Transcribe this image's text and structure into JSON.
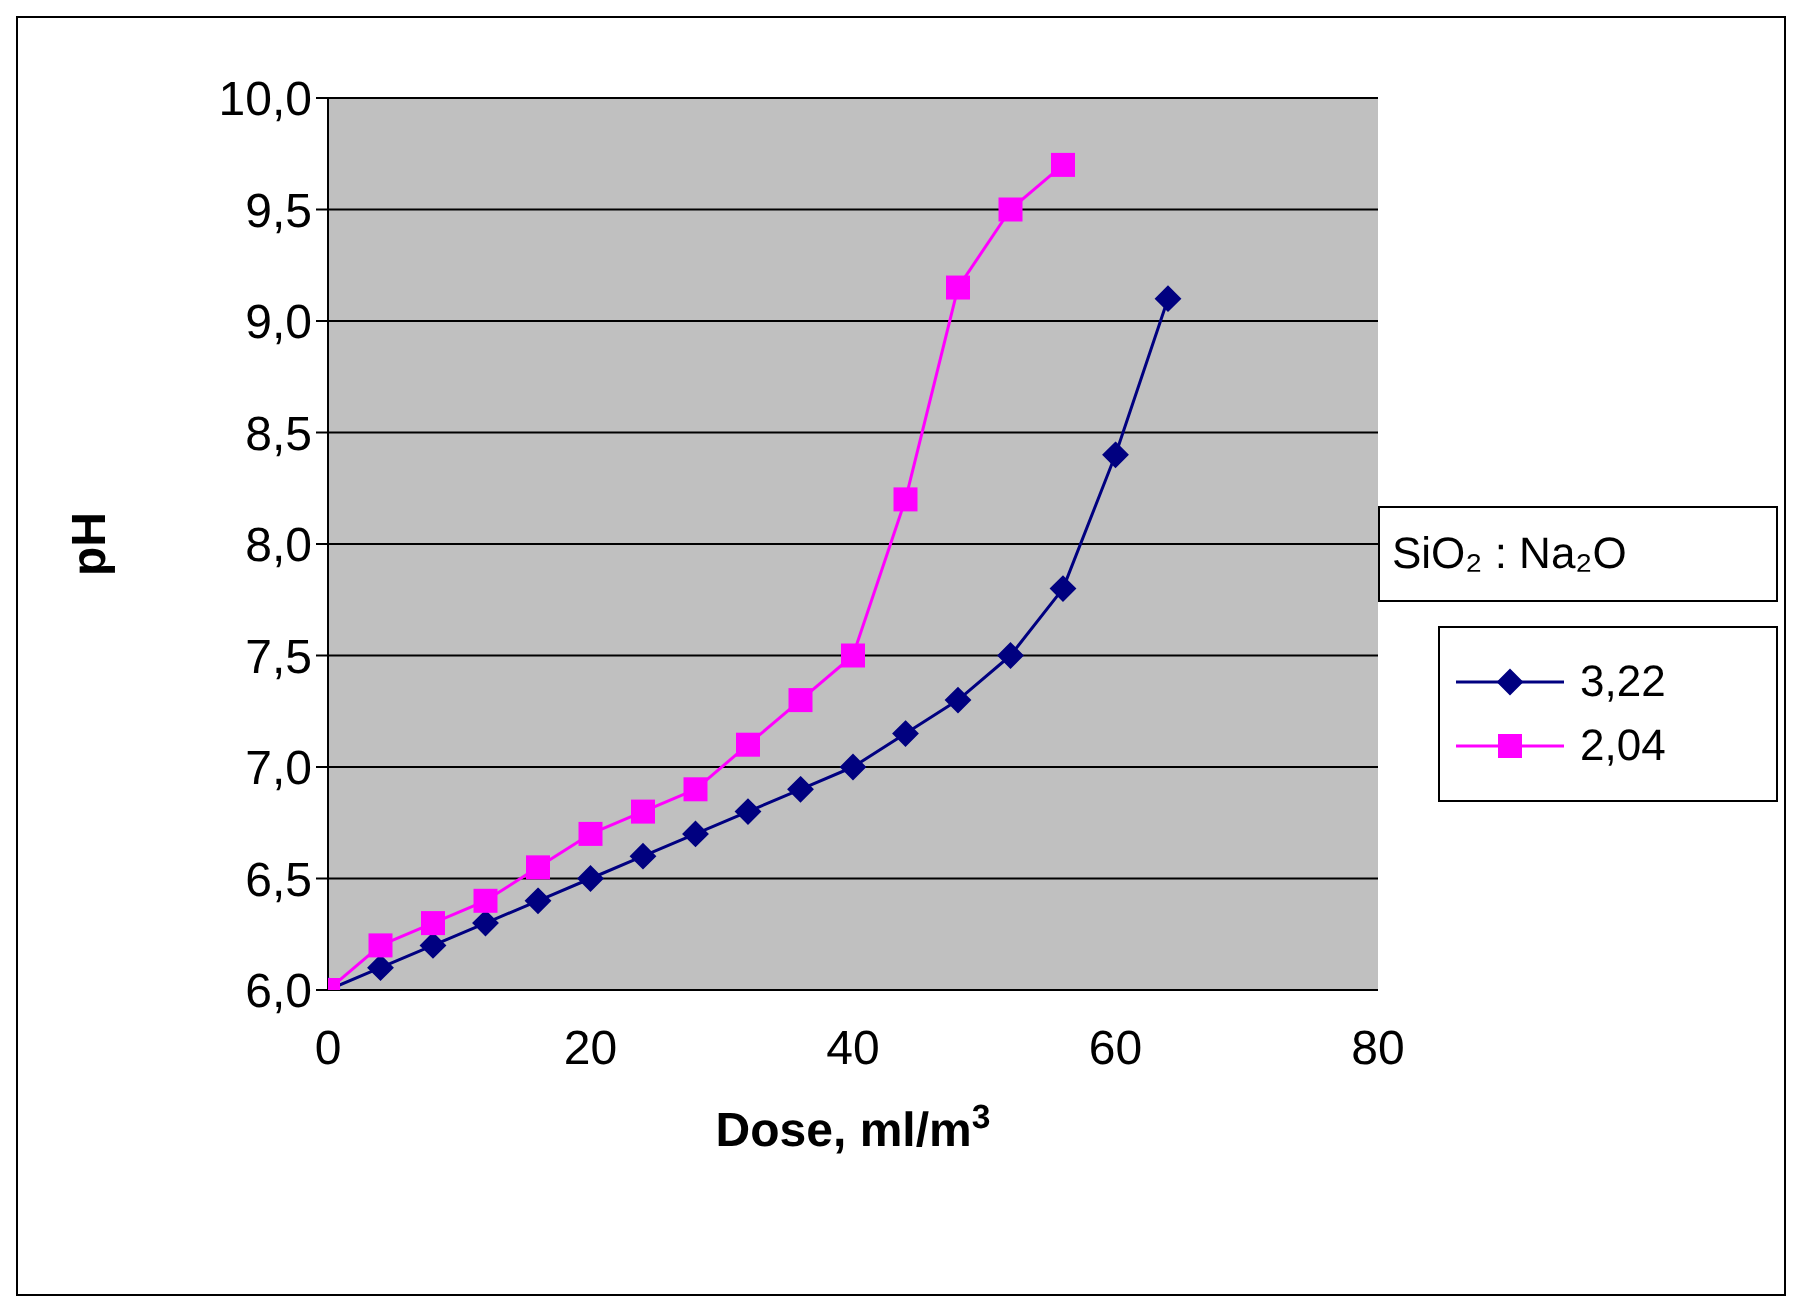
{
  "chart_data": {
    "type": "line",
    "xlabel": "Dose, ml/m$^{3}$",
    "ylabel": "pH",
    "legend_title": "SiO₂ : Na₂O",
    "legend": "right",
    "grid": "y",
    "xlim": [
      0,
      80
    ],
    "xticks": [
      0,
      20,
      40,
      60,
      80
    ],
    "ylim": [
      6,
      10
    ],
    "yticks": [
      {
        "value": 6,
        "label": "6,0"
      },
      {
        "value": 6.5,
        "label": "6,5"
      },
      {
        "value": 7,
        "label": "7,0"
      },
      {
        "value": 7.5,
        "label": "7,5"
      },
      {
        "value": 8,
        "label": "8,0"
      },
      {
        "value": 8.5,
        "label": "8,5"
      },
      {
        "value": 9,
        "label": "9,0"
      },
      {
        "value": 9.5,
        "label": "9,5"
      },
      {
        "value": 10,
        "label": "10,0"
      }
    ],
    "series": [
      {
        "name": "3,22",
        "color": "#000080",
        "marker": "diamond",
        "x": [
          0,
          4,
          8,
          12,
          16,
          20,
          24,
          28,
          32,
          36,
          40,
          44,
          48,
          52,
          56,
          60,
          64
        ],
        "values": [
          6.0,
          6.1,
          6.2,
          6.3,
          6.4,
          6.5,
          6.6,
          6.7,
          6.8,
          6.9,
          7.0,
          7.15,
          7.3,
          7.5,
          7.8,
          8.4,
          9.1
        ]
      },
      {
        "name": "2,04",
        "color": "#ff00ff",
        "marker": "square",
        "x": [
          0,
          4,
          8,
          12,
          16,
          20,
          24,
          28,
          32,
          36,
          40,
          44,
          48,
          52,
          56
        ],
        "values": [
          6.0,
          6.2,
          6.3,
          6.4,
          6.55,
          6.7,
          6.8,
          6.9,
          7.1,
          7.3,
          7.5,
          8.2,
          9.15,
          9.5,
          9.7
        ]
      }
    ]
  }
}
